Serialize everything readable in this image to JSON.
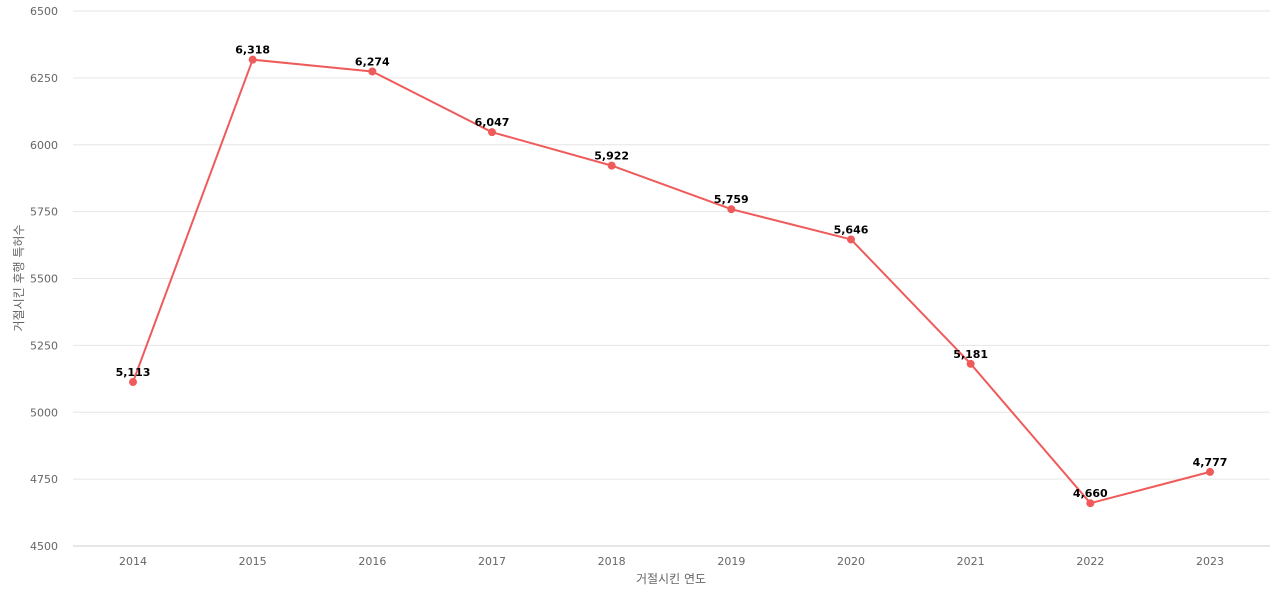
{
  "chart_data": {
    "type": "line",
    "title": "",
    "xlabel": "거절시킨 연도",
    "ylabel": "거절시킨 후행 특허수",
    "x": [
      "2014",
      "2015",
      "2016",
      "2017",
      "2018",
      "2019",
      "2020",
      "2021",
      "2022",
      "2023"
    ],
    "series": [
      {
        "values": [
          5113,
          6318,
          6274,
          6047,
          5922,
          5759,
          5646,
          5181,
          4660,
          4777
        ],
        "labels": [
          "5,113",
          "6,318",
          "6,274",
          "6,047",
          "5,922",
          "5,759",
          "5,646",
          "5,181",
          "4,660",
          "4,777"
        ],
        "color": "#ef5b5b"
      }
    ],
    "ylim": [
      4500,
      6500
    ],
    "yticks": [
      "4500",
      "4750",
      "5000",
      "5250",
      "5500",
      "5750",
      "6000",
      "6250",
      "6500"
    ],
    "grid": true,
    "legend": "none"
  }
}
